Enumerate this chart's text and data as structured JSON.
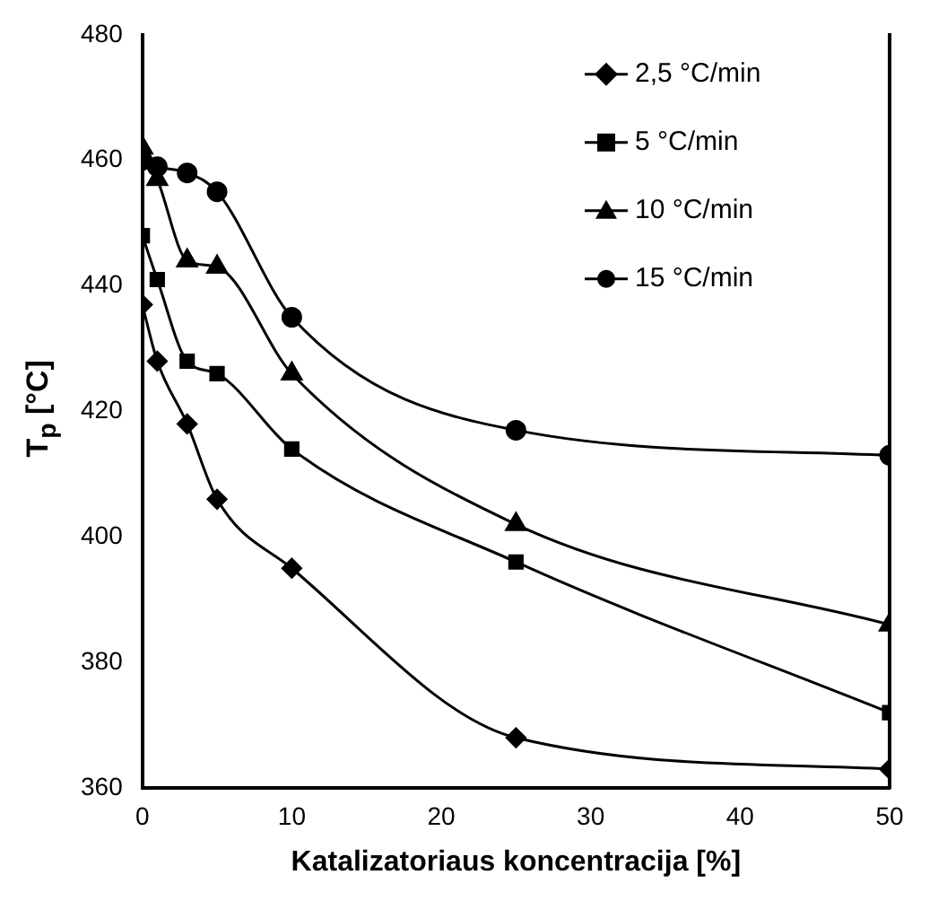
{
  "chart_data": {
    "type": "line",
    "xlabel": "Katalizatoriaus koncentracija [%]",
    "ylabel": "T$_{p}$ [°C]",
    "x": [
      0,
      1,
      3,
      5,
      10,
      25,
      50
    ],
    "series": [
      {
        "name": "2,5 °C/min",
        "color": "#000000",
        "marker": "diamond",
        "values": [
          437,
          428,
          418,
          406,
          395,
          368,
          363
        ]
      },
      {
        "name": "5 °C/min",
        "color": "#000000",
        "marker": "square",
        "values": [
          448,
          441,
          428,
          426,
          414,
          396,
          372
        ]
      },
      {
        "name": "10 °C/min",
        "color": "#000000",
        "marker": "triangle",
        "values": [
          462,
          457,
          444,
          443,
          426,
          402,
          386
        ]
      },
      {
        "name": "15 °C/min",
        "color": "#000000",
        "marker": "circle",
        "values": [
          460,
          459,
          458,
          455,
          435,
          417,
          413
        ]
      }
    ],
    "xlim": [
      0,
      50
    ],
    "xticks": [
      0,
      10,
      20,
      30,
      40,
      50
    ],
    "ylim": [
      360,
      480
    ],
    "yticks": [
      360,
      380,
      400,
      420,
      440,
      460,
      480
    ],
    "grid": false,
    "legend": "top right"
  }
}
